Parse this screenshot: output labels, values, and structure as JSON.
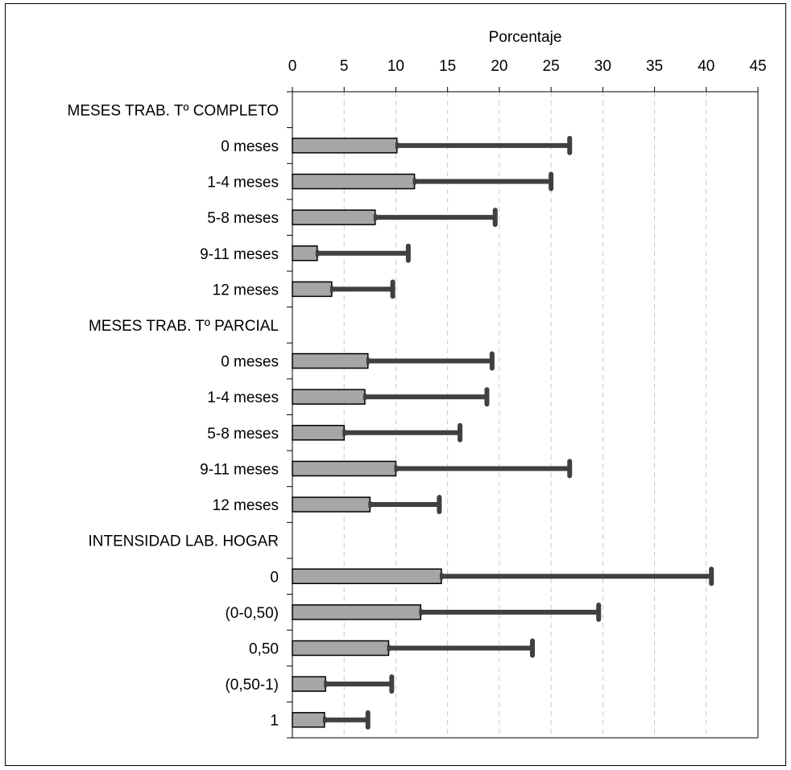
{
  "chart_data": {
    "type": "bar",
    "orientation": "horizontal",
    "xlabel": "Porcentaje",
    "xlim": [
      0,
      45
    ],
    "xticks": [
      0,
      5,
      10,
      15,
      20,
      25,
      30,
      35,
      40,
      45
    ],
    "grid": true,
    "legend": "none",
    "colors": {
      "bar": "#a6a6a6",
      "error_bar": "#404040",
      "grid": "#c8c8c8"
    },
    "categories": [
      "MESES TRAB. Tº COMPLETO",
      "0 meses",
      "1-4 meses",
      "5-8 meses",
      "9-11 meses",
      "12 meses",
      "MESES TRAB. Tº PARCIAL",
      "0 meses",
      "1-4 meses",
      "5-8 meses",
      "9-11 meses",
      "12 meses",
      "INTENSIDAD LAB. HOGAR",
      "0",
      "(0-0,50)",
      "0,50",
      "(0,50-1)",
      "1"
    ],
    "values": [
      null,
      10.1,
      11.8,
      8.0,
      2.4,
      3.8,
      null,
      7.3,
      7.0,
      5.0,
      10.0,
      7.5,
      null,
      14.4,
      12.4,
      9.3,
      3.2,
      3.1
    ],
    "upper": [
      null,
      26.8,
      25.0,
      19.6,
      11.2,
      9.7,
      null,
      19.3,
      18.8,
      16.2,
      26.8,
      14.2,
      null,
      40.5,
      29.6,
      23.2,
      9.6,
      7.3
    ]
  }
}
